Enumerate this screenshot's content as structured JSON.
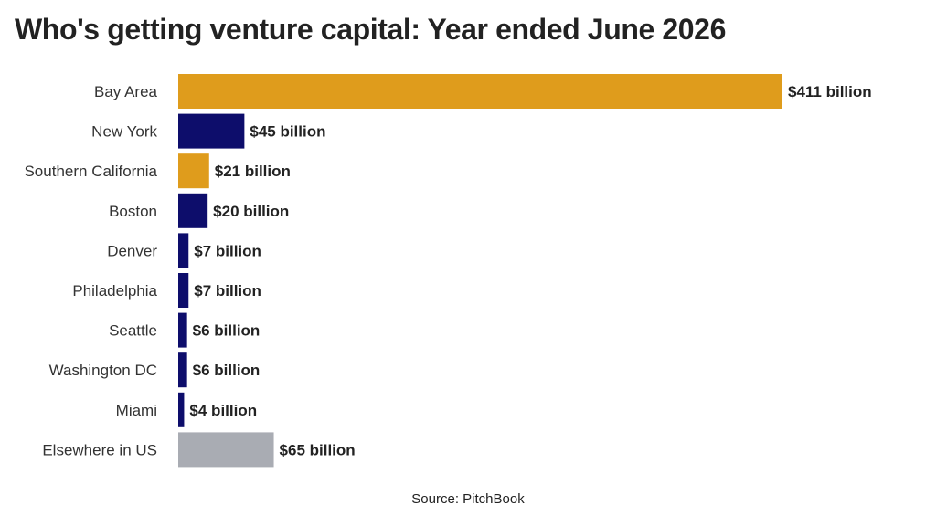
{
  "title": "Who's getting venture capital: Year ended June 2026",
  "source": "Source: PitchBook",
  "colors": {
    "gold": "#DF9C1C",
    "navy": "#0D0D6B",
    "gray": "#A9ACB3"
  },
  "chart_data": {
    "type": "bar",
    "orientation": "horizontal",
    "title": "Who's getting venture capital: Year ended June 2026",
    "xlabel": "",
    "ylabel": "",
    "grid": false,
    "xlim": [
      0,
      411
    ],
    "categories": [
      "Bay Area",
      "New York",
      "Southern California",
      "Boston",
      "Denver",
      "Philadelphia",
      "Seattle",
      "Washington DC",
      "Miami",
      "Elsewhere in US"
    ],
    "values": [
      411,
      45,
      21,
      20,
      7,
      7,
      6,
      6,
      4,
      65
    ],
    "data_labels": [
      "$411 billion",
      "$45 billion",
      "$21 billion",
      "$20 billion",
      "$7 billion",
      "$7 billion",
      "$6 billion",
      "$6 billion",
      "$4 billion",
      "$65 billion"
    ],
    "bar_colors": [
      "#DF9C1C",
      "#0D0D6B",
      "#DF9C1C",
      "#0D0D6B",
      "#0D0D6B",
      "#0D0D6B",
      "#0D0D6B",
      "#0D0D6B",
      "#0D0D6B",
      "#A9ACB3"
    ]
  }
}
